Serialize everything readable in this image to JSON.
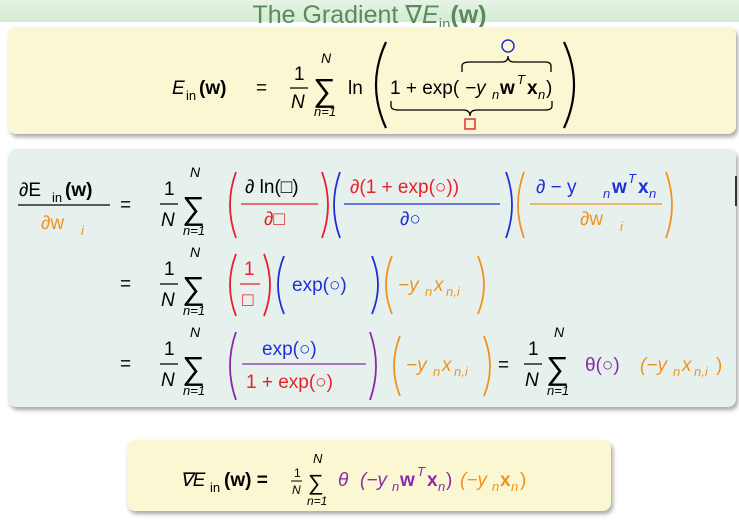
{
  "slide": {
    "title_prefix": "The Gradient ∇",
    "title_E": "E",
    "title_sub": "in",
    "title_suffix": "(w)"
  },
  "colors": {
    "red": "#e8202a",
    "blue": "#1f2fd6",
    "orange": "#f0931e",
    "purple": "#8b2aa8",
    "title_green": "#5b8a5b",
    "box_yellow": "#fbf7d3",
    "box_green": "#e6f1ee"
  },
  "eq1": {
    "lhs_E": "E",
    "lhs_sub": "in",
    "lhs_arg": "(w)",
    "eq": "=",
    "one": "1",
    "N": "N",
    "sum_top": "N",
    "sum_bot": "n=1",
    "ln": "ln",
    "inner_one_plus": "1 + exp(",
    "inner_y": "−y",
    "inner_n": "n",
    "inner_w": "w",
    "inner_T": "T",
    "inner_x": "x",
    "inner_close": ")",
    "circle_label": "○",
    "square_label": "□"
  },
  "eq2": {
    "lhs_num": "∂E",
    "lhs_num_sub": "in",
    "lhs_num_arg": "(w)",
    "lhs_den": "∂w",
    "lhs_den_sub": "i",
    "f1_num": "∂ ln(□)",
    "f1_den": "∂□",
    "f2_num": "∂(1 + exp(○))",
    "f2_den": "∂○",
    "f3_num": "∂ − y",
    "f3_den": "∂w",
    "row2_f1_num": "1",
    "row2_f1_den": "□",
    "row2_exp": "exp(○)",
    "row2_y": "−y",
    "row2_x": "x",
    "row2_xsub": "n,i",
    "row3_num": "exp(○)",
    "row3_den": "1 + exp(○)",
    "theta": "θ(○)",
    "eq": "="
  },
  "eq3": {
    "nabla": "∇E",
    "sub": "in",
    "arg": "(w) =",
    "frac_one": "1",
    "frac_N": "N",
    "sum_top": "N",
    "sum_bot": "n=1",
    "theta": "θ",
    "paren_y": "(−y",
    "paren_rest": ")",
    "y2": "(−y",
    "x2": "x",
    "close2": ")"
  }
}
